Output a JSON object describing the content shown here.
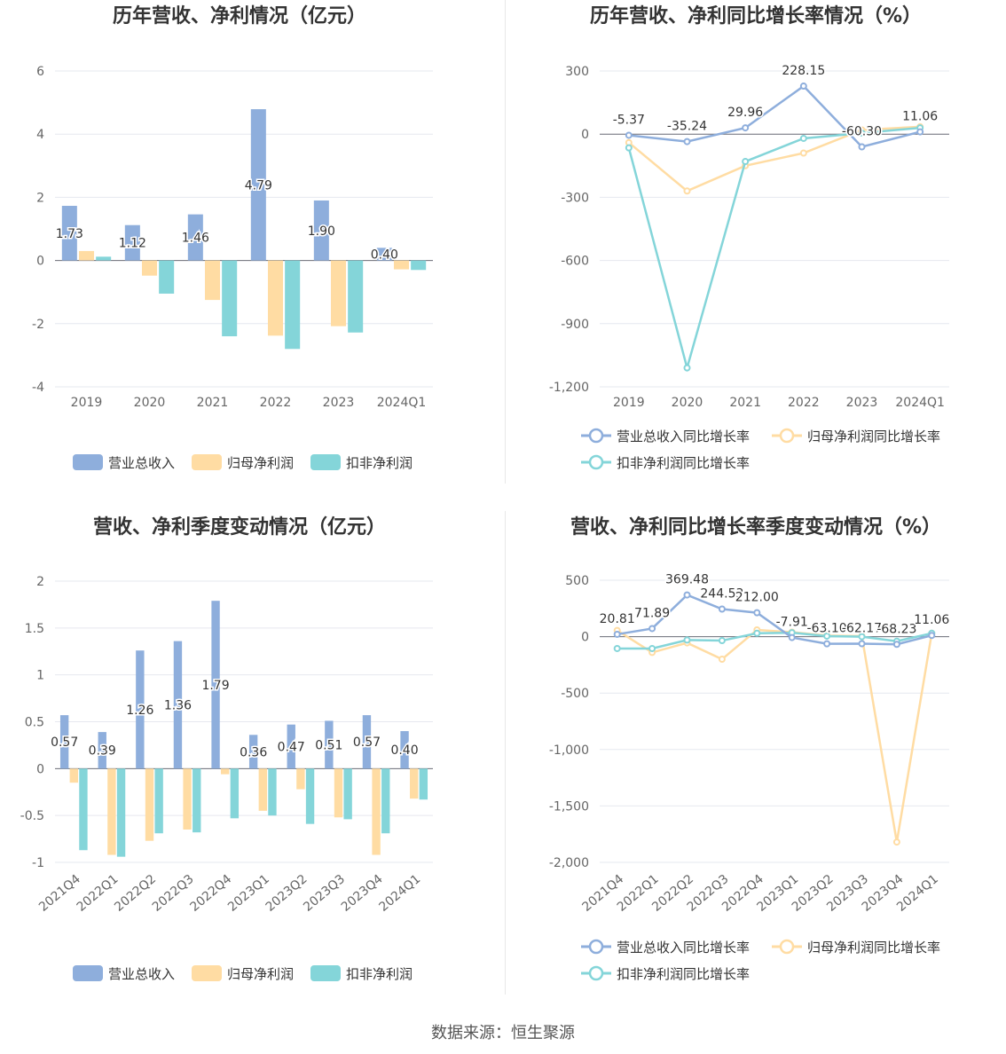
{
  "colors": {
    "revenue": "#8eaedc",
    "net_profit": "#ffdca3",
    "deducted_profit": "#84d5d9"
  },
  "source": "数据来源：恒生聚源",
  "chart_data": [
    {
      "type": "bar",
      "title": "历年营收、净利情况（亿元）",
      "categories": [
        "2019",
        "2020",
        "2021",
        "2022",
        "2023",
        "2024Q1"
      ],
      "series": [
        {
          "name": "营业总收入",
          "values": [
            1.73,
            1.12,
            1.46,
            4.79,
            1.9,
            0.4
          ],
          "labels": [
            "1.73",
            "1.12",
            "1.46",
            "4.79",
            "1.90",
            "0.40"
          ]
        },
        {
          "name": "归母净利润",
          "values": [
            0.3,
            -0.48,
            -1.25,
            -2.38,
            -2.08,
            -0.28
          ]
        },
        {
          "name": "扣非净利润",
          "values": [
            0.12,
            -1.05,
            -2.4,
            -2.8,
            -2.28,
            -0.3
          ]
        }
      ],
      "yticks": [
        "6",
        "4",
        "2",
        "0",
        "-2",
        "-4"
      ],
      "ylim": [
        -4,
        6
      ],
      "legend": "bottom"
    },
    {
      "type": "line",
      "title": "历年营收、净利同比增长率情况（%）",
      "categories": [
        "2019",
        "2020",
        "2021",
        "2022",
        "2023",
        "2024Q1"
      ],
      "series": [
        {
          "name": "营业总收入同比增长率",
          "values": [
            -5.37,
            -35.24,
            29.96,
            228.15,
            -60.3,
            11.06
          ],
          "labels": [
            "-5.37",
            "-35.24",
            "29.96",
            "228.15",
            "-60.30",
            "11.06"
          ]
        },
        {
          "name": "归母净利润同比增长率",
          "values": [
            -40,
            -270,
            -150,
            -90,
            20,
            35
          ]
        },
        {
          "name": "扣非净利润同比增长率",
          "values": [
            -65,
            -1110,
            -130,
            -20,
            5,
            30
          ]
        }
      ],
      "yticks": [
        "300",
        "0",
        "-300",
        "-600",
        "-900",
        "-1,200"
      ],
      "ylim": [
        -1200,
        300
      ],
      "legend": "bottom"
    },
    {
      "type": "bar",
      "title": "营收、净利季度变动情况（亿元）",
      "categories": [
        "2021Q4",
        "2022Q1",
        "2022Q2",
        "2022Q3",
        "2022Q4",
        "2023Q1",
        "2023Q2",
        "2023Q3",
        "2023Q4",
        "2024Q1"
      ],
      "series": [
        {
          "name": "营业总收入",
          "values": [
            0.57,
            0.39,
            1.26,
            1.36,
            1.79,
            0.36,
            0.47,
            0.51,
            0.57,
            0.4
          ],
          "labels": [
            "0.57",
            "0.39",
            "1.26",
            "1.36",
            "1.79",
            "0.36",
            "0.47",
            "0.51",
            "0.57",
            "0.40"
          ]
        },
        {
          "name": "归母净利润",
          "values": [
            -0.15,
            -0.92,
            -0.77,
            -0.65,
            -0.06,
            -0.45,
            -0.22,
            -0.52,
            -0.92,
            -0.32
          ]
        },
        {
          "name": "扣非净利润",
          "values": [
            -0.87,
            -0.94,
            -0.69,
            -0.68,
            -0.53,
            -0.5,
            -0.59,
            -0.54,
            -0.69,
            -0.33
          ]
        }
      ],
      "yticks": [
        "2",
        "1.5",
        "1",
        "0.5",
        "0",
        "-0.5",
        "-1"
      ],
      "ylim": [
        -1,
        2
      ],
      "legend": "bottom"
    },
    {
      "type": "line",
      "title": "营收、净利同比增长率季度变动情况（%）",
      "categories": [
        "2021Q4",
        "2022Q1",
        "2022Q2",
        "2022Q3",
        "2022Q4",
        "2023Q1",
        "2023Q2",
        "2023Q3",
        "2023Q4",
        "2024Q1"
      ],
      "series": [
        {
          "name": "营业总收入同比增长率",
          "values": [
            20.81,
            71.89,
            369.48,
            244.53,
            212.0,
            -7.91,
            -63.1,
            -62.17,
            -68.23,
            11.06
          ],
          "labels": [
            "20.81",
            "71.89",
            "369.48",
            "244.53",
            "212.00",
            "-7.91",
            "-63.10",
            "-62.17",
            "-68.23",
            "11.06"
          ]
        },
        {
          "name": "归母净利润同比增长率",
          "values": [
            55,
            -140,
            -55,
            -200,
            60,
            40,
            10,
            5,
            -1820,
            30
          ]
        },
        {
          "name": "扣非净利润同比增长率",
          "values": [
            -105,
            -105,
            -30,
            -35,
            30,
            35,
            5,
            0,
            -40,
            30
          ]
        }
      ],
      "yticks": [
        "500",
        "0",
        "-500",
        "-1,000",
        "-1,500",
        "-2,000"
      ],
      "ylim": [
        -2000,
        500
      ],
      "legend": "bottom"
    }
  ]
}
